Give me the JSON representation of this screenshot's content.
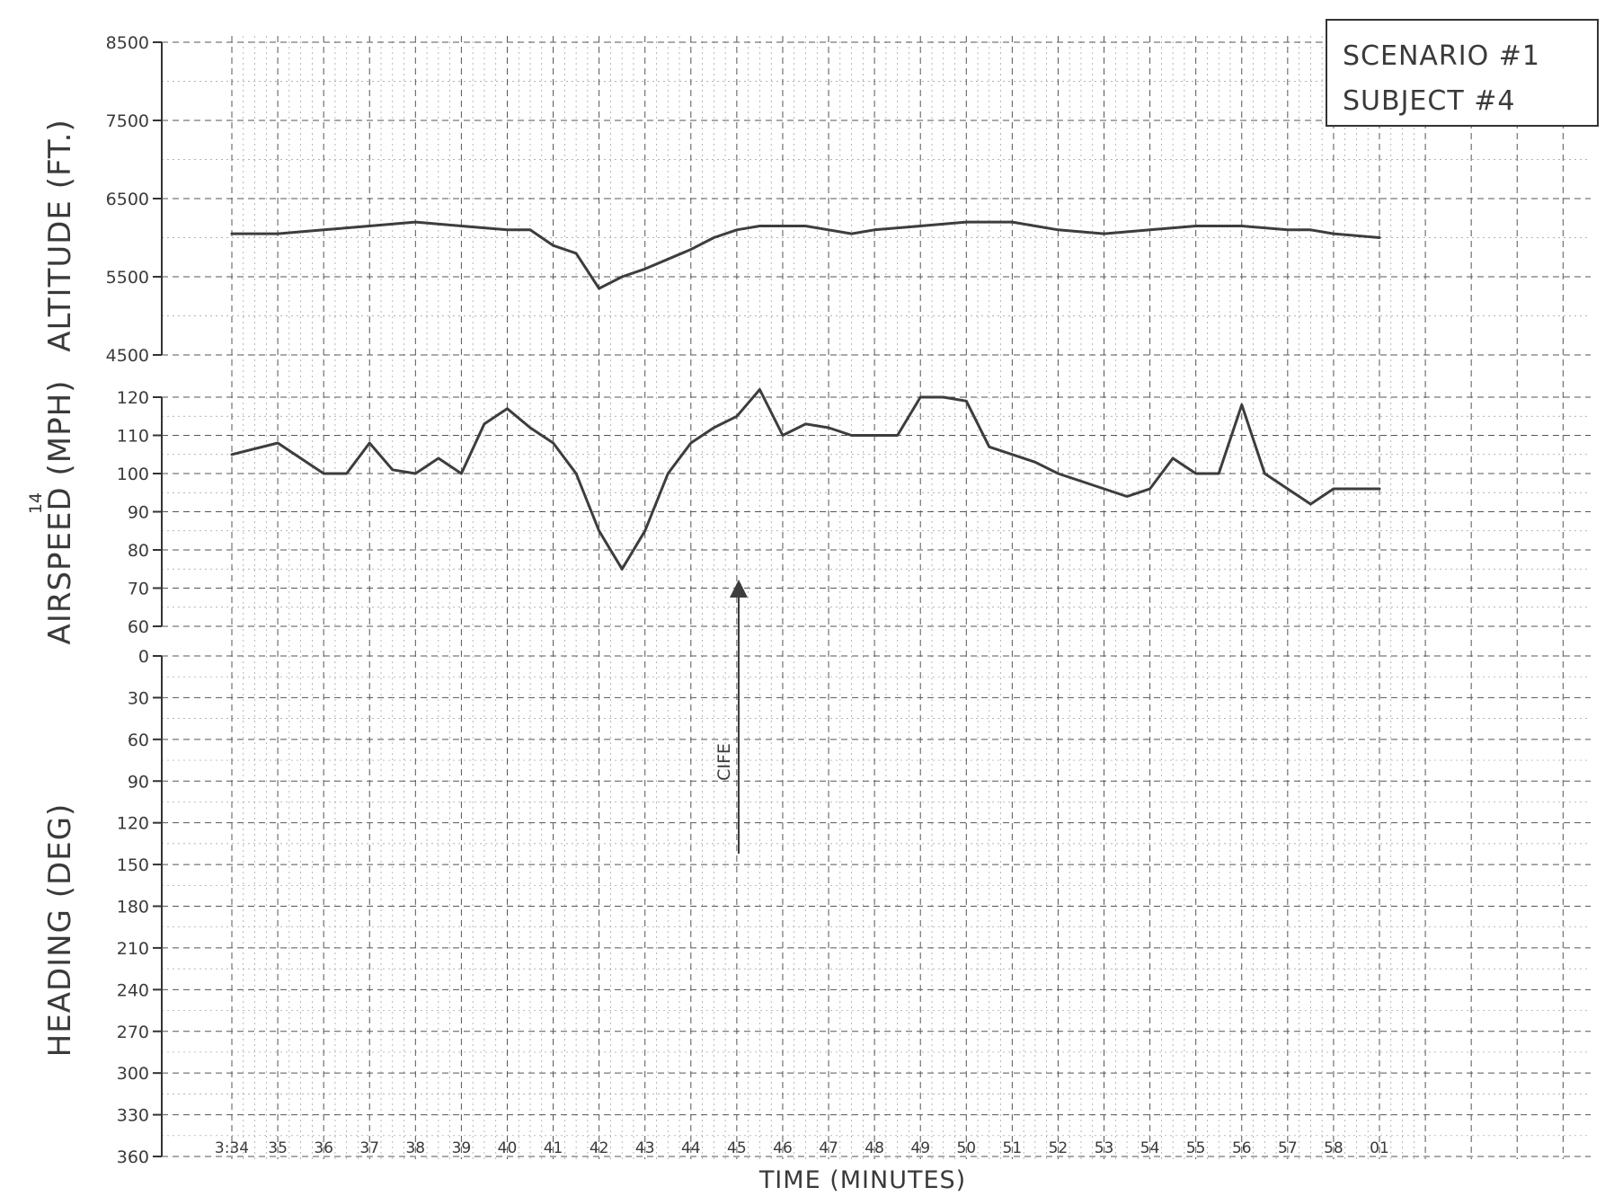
{
  "labels": {
    "altitude_axis": "ALTITUDE (FT.)",
    "airspeed_axis": "AIRSPEED (MPH)",
    "heading_axis": "HEADING (DEG)",
    "x_axis": "TIME (MINUTES)",
    "scenario": "SCENARIO #1",
    "subject": "SUBJECT #4",
    "annotation": "CIFE",
    "margin_mark": "14"
  },
  "chart_data": [
    {
      "type": "line",
      "panel": "altitude",
      "ylabel": "ALTITUDE (FT.)",
      "ylim": [
        4500,
        8500
      ],
      "yticks": [
        "8500",
        "7500",
        "6500",
        "5500",
        "4500"
      ],
      "xlim": [
        0,
        25
      ],
      "xticks": [
        "3:34",
        "35",
        "36",
        "37",
        "38",
        "39",
        "40",
        "41",
        "42",
        "43",
        "44",
        "45",
        "46",
        "47",
        "48",
        "49",
        "50",
        "51",
        "52",
        "53",
        "54",
        "55",
        "56",
        "57",
        "58",
        "01"
      ],
      "xlabel": "TIME (MINUTES)",
      "grid": true,
      "x": [
        0,
        1,
        2,
        3,
        4,
        5,
        6,
        6.5,
        7,
        7.5,
        8,
        8.5,
        9,
        10,
        10.5,
        11,
        11.5,
        12,
        12.5,
        13,
        13.5,
        14,
        15,
        16,
        17,
        18,
        19,
        20,
        21,
        22,
        23,
        23.5,
        24,
        25
      ],
      "y": [
        6050,
        6050,
        6100,
        6150,
        6200,
        6150,
        6100,
        6100,
        5900,
        5800,
        5350,
        5500,
        5600,
        5850,
        6000,
        6100,
        6150,
        6150,
        6150,
        6100,
        6050,
        6100,
        6150,
        6200,
        6200,
        6100,
        6050,
        6100,
        6150,
        6150,
        6100,
        6100,
        6050,
        6000
      ]
    },
    {
      "type": "line",
      "panel": "airspeed",
      "ylabel": "AIRSPEED (MPH)",
      "ylim": [
        60,
        120
      ],
      "yticks": [
        "120",
        "110",
        "100",
        "90",
        "80",
        "70",
        "60"
      ],
      "xlim": [
        0,
        25
      ],
      "grid": true,
      "x": [
        0,
        1,
        1.5,
        2,
        2.5,
        3,
        3.5,
        4,
        4.5,
        5,
        5.5,
        6,
        6.5,
        7,
        7.5,
        8,
        8.5,
        9,
        9.5,
        10,
        10.5,
        11,
        11.5,
        12,
        12.5,
        13,
        13.5,
        14,
        14.5,
        15,
        15.5,
        16,
        16.5,
        17,
        17.5,
        18,
        18.5,
        19,
        19.5,
        20,
        20.5,
        21,
        21.5,
        22,
        22.5,
        23,
        23.5,
        24,
        24.5,
        25
      ],
      "y": [
        105,
        108,
        104,
        100,
        100,
        108,
        101,
        100,
        104,
        100,
        113,
        117,
        112,
        108,
        100,
        85,
        75,
        85,
        100,
        108,
        112,
        115,
        122,
        110,
        113,
        112,
        110,
        110,
        110,
        120,
        120,
        119,
        107,
        105,
        103,
        100,
        98,
        96,
        94,
        96,
        104,
        100,
        100,
        118,
        100,
        96,
        92,
        96,
        96,
        96
      ]
    },
    {
      "type": "line",
      "panel": "heading",
      "ylabel": "HEADING (DEG)",
      "ylim": [
        0,
        360
      ],
      "yticks": [
        "0",
        "30",
        "60",
        "90",
        "120",
        "150",
        "180",
        "210",
        "240",
        "270",
        "300",
        "330",
        "360"
      ],
      "xlim": [
        0,
        25
      ],
      "grid": true,
      "series": []
    }
  ]
}
